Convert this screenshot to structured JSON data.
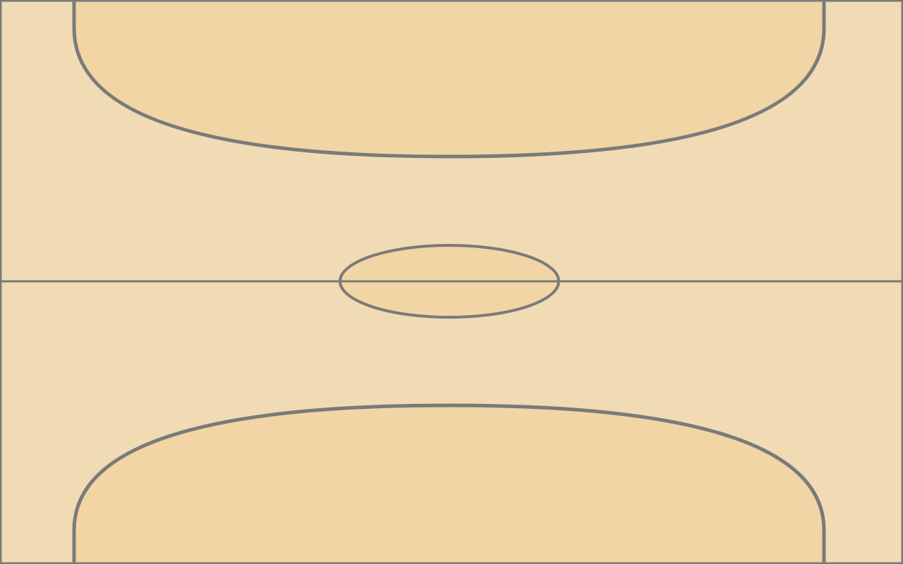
{
  "court": {
    "floor_color": "#f0dbb4",
    "zone_color": "#f1d5a4",
    "line_color": "#7a7a7a",
    "orientation": "vertical",
    "elements": [
      "boundary",
      "halfway-line",
      "center-circle",
      "top-goal-area",
      "bottom-goal-area"
    ]
  }
}
